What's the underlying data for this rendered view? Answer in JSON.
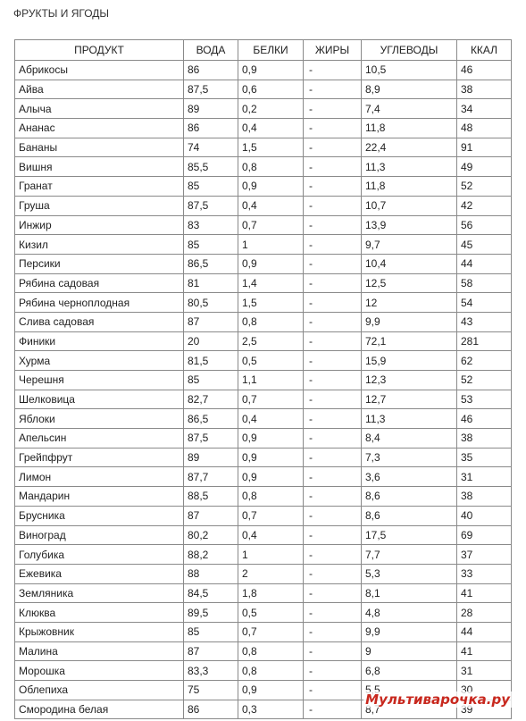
{
  "page_title": "ФРУКТЫ И ЯГОДЫ",
  "columns": [
    "ПРОДУКТ",
    "ВОДА",
    "БЕЛКИ",
    "ЖИРЫ",
    "УГЛЕВОДЫ",
    "ККАЛ"
  ],
  "rows": [
    [
      "Абрикосы",
      "86",
      "0,9",
      "-",
      "10,5",
      "46"
    ],
    [
      "Айва",
      "87,5",
      "0,6",
      "-",
      "8,9",
      "38"
    ],
    [
      "Алыча",
      "89",
      "0,2",
      "-",
      "7,4",
      "34"
    ],
    [
      "Ананас",
      "86",
      "0,4",
      "-",
      "11,8",
      "48"
    ],
    [
      "Бананы",
      "74",
      "1,5",
      "-",
      "22,4",
      "91"
    ],
    [
      "Вишня",
      "85,5",
      "0,8",
      "-",
      "11,3",
      "49"
    ],
    [
      "Гранат",
      "85",
      "0,9",
      "-",
      "11,8",
      "52"
    ],
    [
      "Груша",
      "87,5",
      "0,4",
      "-",
      "10,7",
      "42"
    ],
    [
      "Инжир",
      "83",
      "0,7",
      "-",
      "13,9",
      "56"
    ],
    [
      "Кизил",
      "85",
      "1",
      "-",
      "9,7",
      "45"
    ],
    [
      "Персики",
      "86,5",
      "0,9",
      "-",
      "10,4",
      "44"
    ],
    [
      "Рябина садовая",
      "81",
      "1,4",
      "-",
      "12,5",
      "58"
    ],
    [
      "Рябина черноплодная",
      "80,5",
      "1,5",
      "-",
      "12",
      "54"
    ],
    [
      "Слива садовая",
      "87",
      "0,8",
      "-",
      "9,9",
      "43"
    ],
    [
      "Финики",
      "20",
      "2,5",
      "-",
      "72,1",
      "281"
    ],
    [
      "Хурма",
      "81,5",
      "0,5",
      "-",
      "15,9",
      "62"
    ],
    [
      "Черешня",
      "85",
      "1,1",
      "-",
      "12,3",
      "52"
    ],
    [
      "Шелковица",
      "82,7",
      "0,7",
      "-",
      "12,7",
      "53"
    ],
    [
      "Яблоки",
      "86,5",
      "0,4",
      "-",
      "11,3",
      "46"
    ],
    [
      "Апельсин",
      "87,5",
      "0,9",
      "-",
      "8,4",
      "38"
    ],
    [
      "Грейпфрут",
      "89",
      "0,9",
      "-",
      "7,3",
      "35"
    ],
    [
      "Лимон",
      "87,7",
      "0,9",
      "-",
      "3,6",
      "31"
    ],
    [
      "Мандарин",
      "88,5",
      "0,8",
      "-",
      "8,6",
      "38"
    ],
    [
      "Брусника",
      "87",
      "0,7",
      "-",
      "8,6",
      "40"
    ],
    [
      "Виноград",
      "80,2",
      "0,4",
      "-",
      "17,5",
      "69"
    ],
    [
      "Голубика",
      "88,2",
      "1",
      "-",
      "7,7",
      "37"
    ],
    [
      "Ежевика",
      "88",
      "2",
      "-",
      "5,3",
      "33"
    ],
    [
      "Земляника",
      "84,5",
      "1,8",
      "-",
      "8,1",
      "41"
    ],
    [
      "Клюква",
      "89,5",
      "0,5",
      "-",
      "4,8",
      "28"
    ],
    [
      "Крыжовник",
      "85",
      "0,7",
      "-",
      "9,9",
      "44"
    ],
    [
      "Малина",
      "87",
      "0,8",
      "-",
      "9",
      "41"
    ],
    [
      "Морошка",
      "83,3",
      "0,8",
      "-",
      "6,8",
      "31"
    ],
    [
      "Облепиха",
      "75",
      "0,9",
      "-",
      "5,5",
      "30"
    ],
    [
      "Смородина белая",
      "86",
      "0,3",
      "-",
      "8,7",
      "39"
    ]
  ],
  "watermark": "Мультиварочка.ру",
  "colors": {
    "border": "#8a8a8a",
    "text": "#222222",
    "watermark": "#c8281e"
  }
}
